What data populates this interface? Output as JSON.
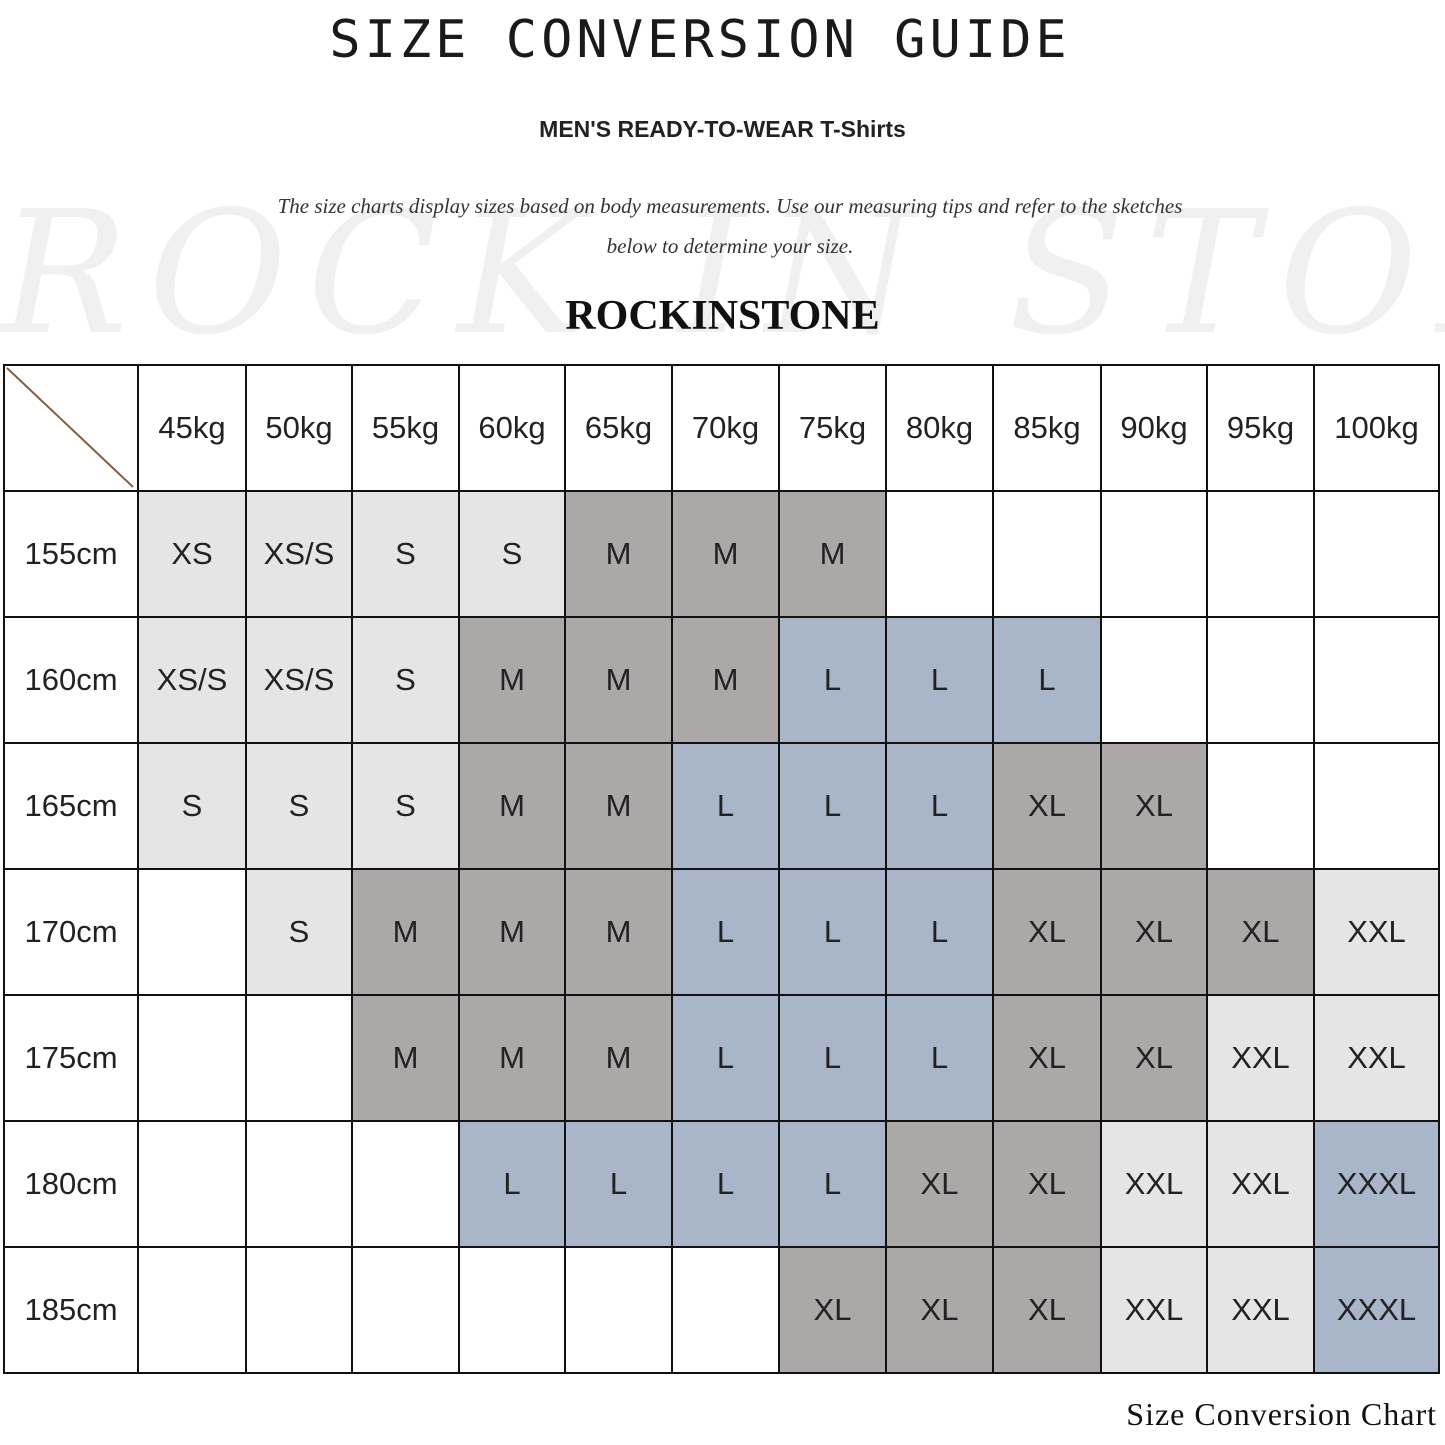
{
  "header": {
    "title": "SIZE CONVERSION GUIDE",
    "subtitle": "MEN'S READY-TO-WEAR T-Shirts",
    "description_line1": "The size charts display sizes based on body measurements. Use our measuring tips and refer to the sketches",
    "description_line2": "below to determine your size.",
    "brand": "ROCKINSTONE",
    "watermark": "ROCK IN STONE"
  },
  "footer": {
    "caption": "Size Conversion Chart"
  },
  "colors": {
    "XS": "#e5e5e5",
    "XS/S": "#e5e5e5",
    "S": "#e5e5e5",
    "XXL": "#e5e5e5",
    "M": "#aca8a7",
    "XL": "#aca8a7",
    "L": "#a9b5c8",
    "XXXL": "#a9b5c8",
    "empty": "#ffffff",
    "diagonal": "#8b5a3c"
  },
  "chart_data": {
    "type": "table",
    "columns": [
      "45kg",
      "50kg",
      "55kg",
      "60kg",
      "65kg",
      "70kg",
      "75kg",
      "80kg",
      "85kg",
      "90kg",
      "95kg",
      "100kg"
    ],
    "rows": [
      {
        "label": "155cm",
        "cells": [
          "XS",
          "XS/S",
          "S",
          "S",
          "M",
          "M",
          "M",
          "",
          "",
          "",
          "",
          ""
        ]
      },
      {
        "label": "160cm",
        "cells": [
          "XS/S",
          "XS/S",
          "S",
          "M",
          "M",
          "M",
          "L",
          "L",
          "L",
          "",
          "",
          ""
        ]
      },
      {
        "label": "165cm",
        "cells": [
          "S",
          "S",
          "S",
          "M",
          "M",
          "L",
          "L",
          "L",
          "XL",
          "XL",
          "",
          ""
        ]
      },
      {
        "label": "170cm",
        "cells": [
          "",
          "S",
          "M",
          "M",
          "M",
          "L",
          "L",
          "L",
          "XL",
          "XL",
          "XL",
          "XXL"
        ]
      },
      {
        "label": "175cm",
        "cells": [
          "",
          "",
          "M",
          "M",
          "M",
          "L",
          "L",
          "L",
          "XL",
          "XL",
          "XXL",
          "XXL"
        ]
      },
      {
        "label": "180cm",
        "cells": [
          "",
          "",
          "",
          "L",
          "L",
          "L",
          "L",
          "XL",
          "XL",
          "XXL",
          "XXL",
          "XXXL"
        ]
      },
      {
        "label": "185cm",
        "cells": [
          "",
          "",
          "",
          "",
          "",
          "",
          "XL",
          "XL",
          "XL",
          "XXL",
          "XXL",
          "XXXL"
        ]
      }
    ]
  }
}
